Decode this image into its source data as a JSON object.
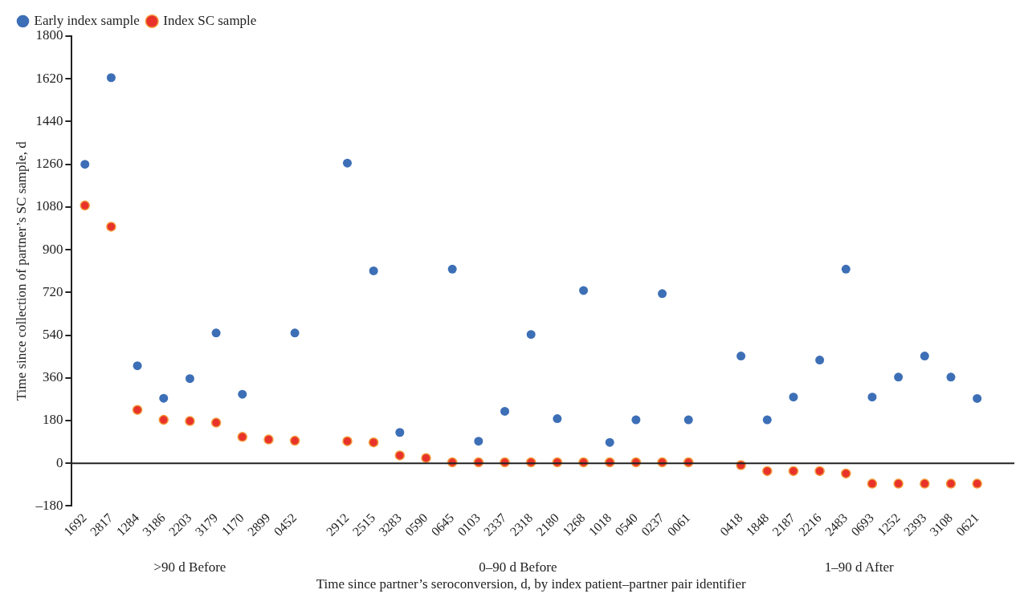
{
  "chart_data": {
    "type": "scatter",
    "xlabel": "Time since partner’s seroconversion, d, by index patient–partner pair identifier",
    "ylabel": "Time since collection of partner’s SC sample, d",
    "categories": [
      "1692",
      "2817",
      "1284",
      "3186",
      "2203",
      "3179",
      "1170",
      "2899",
      "0452",
      null,
      "2912",
      "2515",
      "3283",
      "0590",
      "0645",
      "0103",
      "2337",
      "2318",
      "2180",
      "1268",
      "1018",
      "0540",
      "0237",
      "0061",
      null,
      "0418",
      "1848",
      "2187",
      "2216",
      "2483",
      "0693",
      "1252",
      "2393",
      "3108",
      "0621"
    ],
    "series": [
      {
        "name": "Early index sample",
        "color": "#3d6fb6",
        "values": [
          1260,
          1625,
          411,
          274,
          357,
          549,
          291,
          null,
          549,
          null,
          1265,
          811,
          130,
          null,
          818,
          93,
          219,
          543,
          188,
          728,
          88,
          183,
          715,
          183,
          null,
          452,
          183,
          279,
          435,
          818,
          279,
          363,
          452,
          363,
          273
        ]
      },
      {
        "name": "Index SC sample",
        "color": "#e8322a",
        "values": [
          1086,
          997,
          225,
          183,
          178,
          171,
          111,
          100,
          95,
          null,
          93,
          88,
          33,
          22,
          4,
          4,
          4,
          4,
          4,
          4,
          4,
          4,
          4,
          4,
          null,
          -8,
          -33,
          -33,
          -33,
          -43,
          -86,
          -86,
          -86,
          -86,
          -86
        ]
      }
    ],
    "annotations": [
      ">90 d Before",
      "0–90 d Before",
      "1–90 d After"
    ],
    "ylim": [
      -180,
      1800
    ],
    "yticks": [
      {
        "value": -180,
        "label": "–180"
      },
      0,
      180,
      360,
      540,
      720,
      900,
      1080,
      1260,
      1440,
      1620,
      1800
    ],
    "ref_lines": [
      {
        "axis": "y",
        "value": 0,
        "color": "#222222"
      }
    ],
    "grid": false,
    "legend": "top left",
    "marker": "circle"
  }
}
